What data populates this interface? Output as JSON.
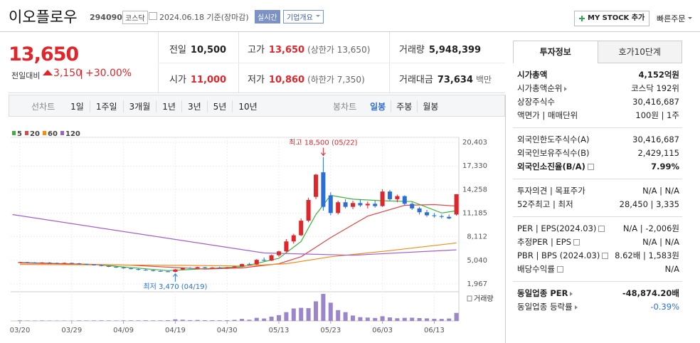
{
  "header": {
    "name": "이오플로우",
    "code": "294090",
    "market": "코스닥",
    "date": "2024.06.18 기준(장마감)",
    "realtime": "실시간",
    "overview": "기업개요",
    "my_stock": "MY STOCK 추가",
    "quick_order": "빠른주문"
  },
  "quote": {
    "price": "13,650",
    "change_label": "전일대비",
    "change": "3,150",
    "change_rate": "+30.00%",
    "stats": [
      [
        {
          "label": "전일",
          "value": "10,500"
        },
        {
          "label": "고가",
          "value": "13,650",
          "note": "(상한가 13,650)",
          "color": "#e0262b"
        },
        {
          "label": "거래량",
          "value": "5,948,399"
        }
      ],
      [
        {
          "label": "시가",
          "value": "11,000",
          "color": "#e0262b"
        },
        {
          "label": "저가",
          "value": "10,860",
          "note": "(하한가 7,350)",
          "color": "#e0262b"
        },
        {
          "label": "거래대금",
          "value": "73,634",
          "note": "백만"
        }
      ]
    ]
  },
  "chart_tabs": {
    "line_label": "선차트",
    "line_periods": [
      "1일",
      "1주일",
      "3개월",
      "1년",
      "3년",
      "5년",
      "10년"
    ],
    "candle_label": "봉차트",
    "candle_periods": [
      "일봉",
      "주봉",
      "월봉"
    ],
    "active": "일봉"
  },
  "chart_data": {
    "type": "candlestick",
    "up_color": "#e0262b",
    "down_color": "#2b6fd6",
    "volume_color": "#9a86c8",
    "volume_label": "거래량",
    "grid": true,
    "ylim": [
      1130,
      21055
    ],
    "yticks": [
      {
        "value": 20403,
        "label": "20,403"
      },
      {
        "value": 17330,
        "label": "17,330"
      },
      {
        "value": 14258,
        "label": "14,258"
      },
      {
        "value": 11185,
        "label": "11,185"
      },
      {
        "value": 8112,
        "label": "8,112"
      },
      {
        "value": 5040,
        "label": "5,040"
      },
      {
        "value": 1967,
        "label": "1,967"
      }
    ],
    "annotations": [
      {
        "kind": "max",
        "text": "최고 18,500 (05/22)",
        "color": "#e0262b"
      },
      {
        "kind": "min",
        "text": "최저 3,470 (04/19)",
        "color": "#2b6fd6"
      }
    ],
    "categories": [
      "03/20",
      null,
      null,
      null,
      null,
      null,
      null,
      "03/29",
      null,
      null,
      null,
      null,
      null,
      null,
      "04/09",
      null,
      null,
      null,
      null,
      null,
      null,
      "04/19",
      null,
      null,
      null,
      null,
      null,
      null,
      "04/30",
      null,
      null,
      null,
      null,
      null,
      null,
      "05/13",
      null,
      null,
      null,
      null,
      null,
      null,
      "05/23",
      null,
      null,
      null,
      null,
      null,
      null,
      "06/03",
      null,
      null,
      null,
      null,
      null,
      null,
      "06/13",
      null,
      null,
      null
    ],
    "open": [
      4750,
      4800,
      4750,
      4700,
      4750,
      4700,
      4650,
      4700,
      4650,
      4550,
      4500,
      4400,
      4300,
      4200,
      4100,
      4000,
      3900,
      3800,
      3750,
      3650,
      3600,
      3550,
      3850,
      4050,
      4000,
      4150,
      4050,
      4100,
      4050,
      4100,
      4250,
      4550,
      4500,
      5100,
      5000,
      5700,
      6200,
      7500,
      8300,
      10200,
      13300,
      16500,
      13500,
      11200,
      12600,
      12000,
      12500,
      12200,
      12400,
      12100,
      14000,
      13000,
      13400,
      12400,
      11800,
      11300,
      10900,
      10800,
      10700,
      11000
    ],
    "high": [
      4850,
      4850,
      4800,
      4800,
      4800,
      4750,
      4750,
      4750,
      4700,
      4600,
      4550,
      4450,
      4350,
      4250,
      4150,
      4050,
      3950,
      3900,
      3800,
      3700,
      3650,
      3900,
      4100,
      4150,
      4200,
      4200,
      4150,
      4200,
      4150,
      4300,
      4600,
      4700,
      5200,
      5400,
      5800,
      6300,
      7800,
      8500,
      10500,
      13200,
      16300,
      18500,
      13900,
      12800,
      13000,
      12800,
      13000,
      12700,
      12800,
      14300,
      14200,
      13600,
      13500,
      12600,
      12000,
      11600,
      11200,
      11000,
      11000,
      13650
    ],
    "low": [
      4700,
      4700,
      4650,
      4650,
      4650,
      4600,
      4600,
      4600,
      4500,
      4450,
      4350,
      4250,
      4150,
      4050,
      3950,
      3850,
      3750,
      3700,
      3600,
      3550,
      3500,
      3470,
      3800,
      3950,
      3950,
      4000,
      3950,
      4000,
      3950,
      4050,
      4200,
      4400,
      4450,
      4900,
      4950,
      5500,
      6100,
      7200,
      8200,
      10000,
      13000,
      11500,
      10900,
      11000,
      11800,
      11700,
      12000,
      11800,
      11900,
      12000,
      12800,
      12600,
      12200,
      11600,
      11000,
      10700,
      10600,
      10500,
      10400,
      10860
    ],
    "close": [
      4800,
      4750,
      4700,
      4750,
      4700,
      4650,
      4700,
      4650,
      4550,
      4500,
      4400,
      4300,
      4200,
      4100,
      4000,
      3900,
      3800,
      3750,
      3650,
      3600,
      3550,
      3850,
      4050,
      4000,
      4150,
      4050,
      4100,
      4050,
      4100,
      4250,
      4550,
      4500,
      5100,
      5000,
      5700,
      6200,
      7500,
      8300,
      10200,
      12900,
      16200,
      12000,
      11200,
      12600,
      12000,
      12500,
      12200,
      12400,
      12100,
      14000,
      13000,
      13400,
      12400,
      11800,
      11300,
      10900,
      10800,
      10700,
      10500,
      13650
    ],
    "volume": [
      420000,
      310000,
      280000,
      350000,
      300000,
      260000,
      290000,
      250000,
      380000,
      330000,
      360000,
      400000,
      350000,
      320000,
      380000,
      410000,
      370000,
      450000,
      390000,
      420000,
      500000,
      1200000,
      900000,
      600000,
      700000,
      500000,
      480000,
      450000,
      520000,
      800000,
      1500000,
      900000,
      2300000,
      1800000,
      3200000,
      4300000,
      6500000,
      9200000,
      9700000,
      9500000,
      14500000,
      20000000,
      13500000,
      8000000,
      6500000,
      4000000,
      2800000,
      2500000,
      2200000,
      3500000,
      2600000,
      2000000,
      2300000,
      2400000,
      2100000,
      1900000,
      1600000,
      1500000,
      1800000,
      5948399
    ],
    "moving_averages": [
      {
        "name": "5",
        "color": "#3cb33c",
        "x": [
          0,
          10,
          20,
          25,
          30,
          35,
          38,
          40,
          42,
          45,
          49,
          53,
          57,
          59
        ],
        "values": [
          4750,
          4500,
          3700,
          3950,
          4200,
          5300,
          7500,
          11000,
          13500,
          13000,
          12800,
          12700,
          11200,
          11500
        ]
      },
      {
        "name": "20",
        "color": "#e04848",
        "x": [
          0,
          15,
          25,
          30,
          35,
          38,
          42,
          47,
          52,
          56,
          59
        ],
        "values": [
          4700,
          4400,
          3900,
          4050,
          4600,
          5500,
          8000,
          10800,
          12200,
          12300,
          12100
        ]
      },
      {
        "name": "60",
        "color": "#f08c1e",
        "x": [
          0,
          20,
          30,
          36,
          42,
          50,
          59
        ],
        "values": [
          4500,
          4400,
          4300,
          4600,
          5500,
          6300,
          7300
        ]
      },
      {
        "name": "120",
        "color": "#a060c8",
        "x": [
          -1,
          33,
          45,
          59
        ],
        "values": [
          11000,
          6000,
          5700,
          6400
        ]
      }
    ]
  },
  "info_panel": {
    "tabs": [
      "투자정보",
      "호가10단계"
    ],
    "groups": [
      [
        {
          "label": "시가총액",
          "value": "4,152억원",
          "bold": true
        },
        {
          "label": "시가총액순위",
          "value": "코스닥 192위",
          "arrow": true
        },
        {
          "label": "상장주식수",
          "value": "30,416,687"
        },
        {
          "label": "액면가 | 매매단위",
          "value": "100원 | 1주"
        }
      ],
      [
        {
          "label": "외국인한도주식수(A)",
          "value": "30,416,687"
        },
        {
          "label": "외국인보유주식수(B)",
          "value": "2,429,115"
        },
        {
          "label": "외국인소진율(B/A)",
          "value": "7.99%",
          "bold": true,
          "help": true
        }
      ],
      [
        {
          "label": "투자의견 | 목표주가",
          "value": "N/A | N/A"
        },
        {
          "label": "52주최고 | 최저",
          "value": "28,450 | 3,335"
        }
      ],
      [
        {
          "label": "PER | EPS(2024.03)",
          "value": "N/A | -2,006원",
          "help": true
        },
        {
          "label": "추정PER | EPS",
          "value": "N/A | N/A",
          "help": true
        },
        {
          "label": "PBR | BPS (2024.03)",
          "value": "8.62배 | 1,583원",
          "help": true
        },
        {
          "label": "배당수익률",
          "value": "N/A",
          "help": true
        }
      ],
      [
        {
          "label": "동일업종 PER",
          "value": "-48,874.20배",
          "bold": true,
          "arrow": true
        },
        {
          "label": "동일업종 등락률",
          "value": "-0.39%",
          "arrow": true,
          "color": "#2b6fd6"
        }
      ]
    ]
  }
}
